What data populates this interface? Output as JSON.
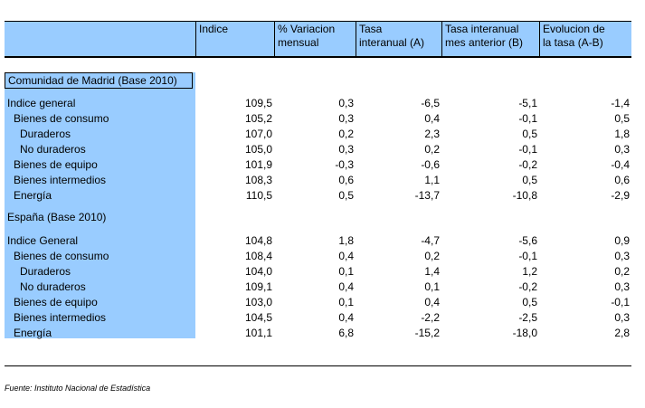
{
  "headers": [
    "Indice",
    "% Variacion\nmensual",
    "Tasa\ninteranual (A)",
    "Tasa interanual\nmes anterior (B)",
    "Evolucion de\nla tasa (A-B)"
  ],
  "sections": [
    {
      "title": "Comunidad de Madrid (Base 2010)",
      "rows": [
        {
          "label": "Indice general",
          "indent": 0,
          "values": [
            "109,5",
            "0,3",
            "-6,5",
            "-5,1",
            "-1,4"
          ]
        },
        {
          "label": "Bienes de consumo",
          "indent": 1,
          "values": [
            "105,2",
            "0,3",
            "0,4",
            "-0,1",
            "0,5"
          ]
        },
        {
          "label": "Duraderos",
          "indent": 2,
          "values": [
            "107,0",
            "0,2",
            "2,3",
            "0,5",
            "1,8"
          ]
        },
        {
          "label": "No duraderos",
          "indent": 2,
          "values": [
            "105,0",
            "0,3",
            "0,2",
            "-0,1",
            "0,3"
          ]
        },
        {
          "label": "Bienes de equipo",
          "indent": 1,
          "values": [
            "101,9",
            "-0,3",
            "-0,6",
            "-0,2",
            "-0,4"
          ]
        },
        {
          "label": "Bienes intermedios",
          "indent": 1,
          "values": [
            "108,3",
            "0,6",
            "1,1",
            "0,5",
            "0,6"
          ]
        },
        {
          "label": "Energía",
          "indent": 1,
          "values": [
            "110,5",
            "0,5",
            "-13,7",
            "-10,8",
            "-2,9"
          ]
        }
      ]
    },
    {
      "title": "España (Base 2010)",
      "rows": [
        {
          "label": "Indice General",
          "indent": 0,
          "values": [
            "104,8",
            "1,8",
            "-4,7",
            "-5,6",
            "0,9"
          ]
        },
        {
          "label": "Bienes de consumo",
          "indent": 1,
          "values": [
            "108,4",
            "0,4",
            "0,2",
            "-0,1",
            "0,3"
          ]
        },
        {
          "label": "Duraderos",
          "indent": 2,
          "values": [
            "104,0",
            "0,1",
            "1,4",
            "1,2",
            "0,2"
          ]
        },
        {
          "label": "No duraderos",
          "indent": 2,
          "values": [
            "109,1",
            "0,4",
            "0,1",
            "-0,2",
            "0,3"
          ]
        },
        {
          "label": "Bienes de equipo",
          "indent": 1,
          "values": [
            "103,0",
            "0,1",
            "0,4",
            "0,5",
            "-0,1"
          ]
        },
        {
          "label": "Bienes intermedios",
          "indent": 1,
          "values": [
            "104,5",
            "0,4",
            "-2,2",
            "-2,5",
            "0,3"
          ]
        },
        {
          "label": "Energía",
          "indent": 1,
          "values": [
            "101,1",
            "6,8",
            "-15,2",
            "-18,0",
            "2,8"
          ]
        }
      ]
    }
  ],
  "source": "Fuente: Instituto Nacional de Estadística"
}
